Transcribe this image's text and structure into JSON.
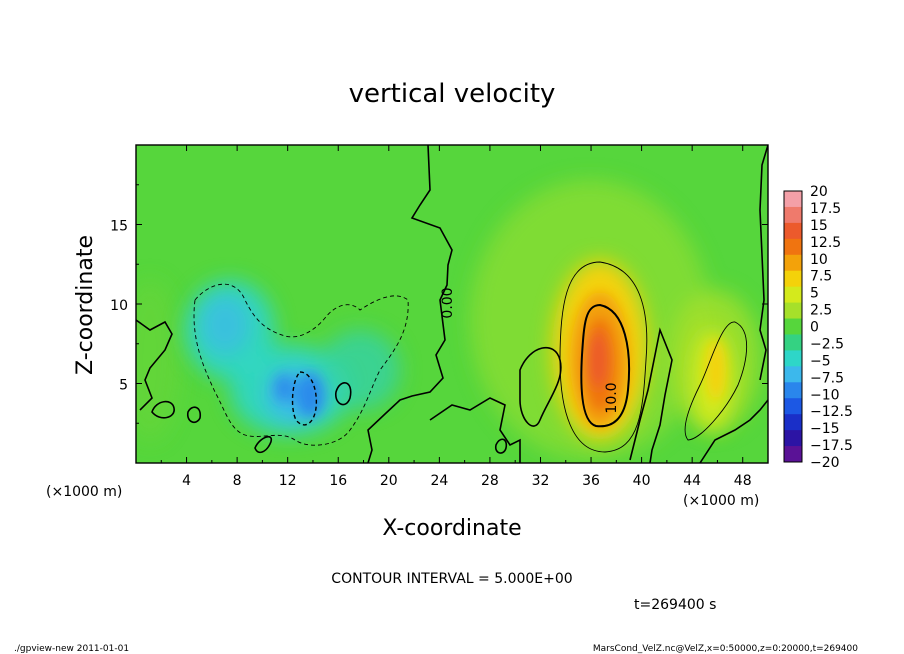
{
  "chart_data": {
    "type": "heatmap",
    "title": "vertical velocity",
    "xlabel": "X-coordinate",
    "ylabel": "Z-coordinate",
    "x_unit": "(×1000 m)",
    "y_unit": "(×1000 m)",
    "xlim": [
      0,
      50
    ],
    "ylim": [
      0,
      20
    ],
    "xticks": [
      4,
      8,
      12,
      16,
      20,
      24,
      28,
      32,
      36,
      40,
      44,
      48
    ],
    "yticks": [
      5,
      10,
      15
    ],
    "colorbar": {
      "levels": [
        "20",
        "17.5",
        "15",
        "12.5",
        "10",
        "7.5",
        "5",
        "2.5",
        "0",
        "−2.5",
        "−5",
        "−7.5",
        "−10",
        "−12.5",
        "−15",
        "−17.5",
        "−20"
      ],
      "colors": [
        "#f4a0a8",
        "#ef7a6c",
        "#ec5a2c",
        "#f07410",
        "#f3a20a",
        "#f4d20a",
        "#d4ea1c",
        "#a6e02a",
        "#56d63c",
        "#34d282",
        "#2ed6c8",
        "#3cb8ec",
        "#2a86ec",
        "#1c58e4",
        "#1a2fc8",
        "#2c14a4",
        "#5a1296"
      ]
    },
    "features": [
      {
        "kind": "updraft",
        "x": 36.5,
        "z": 6.2,
        "peak": 13.0,
        "label": "10.0"
      },
      {
        "kind": "updraft",
        "x": 45.5,
        "z": 6.5,
        "peak": 7.0
      },
      {
        "kind": "downdraft",
        "x": 8,
        "z": 8.5,
        "peak": -6.0
      },
      {
        "kind": "downdraft",
        "x": 14,
        "z": 4.5,
        "peak": -11.0
      }
    ],
    "contour_label": "0.00",
    "contour_interval": "CONTOUR INTERVAL = 5.000E+00",
    "time": "t=269400 s"
  },
  "footer": {
    "left": "./gpview-new   2011-01-01",
    "right": "MarsCond_VelZ.nc@VelZ,x=0:50000,z=0:20000,t=269400"
  }
}
